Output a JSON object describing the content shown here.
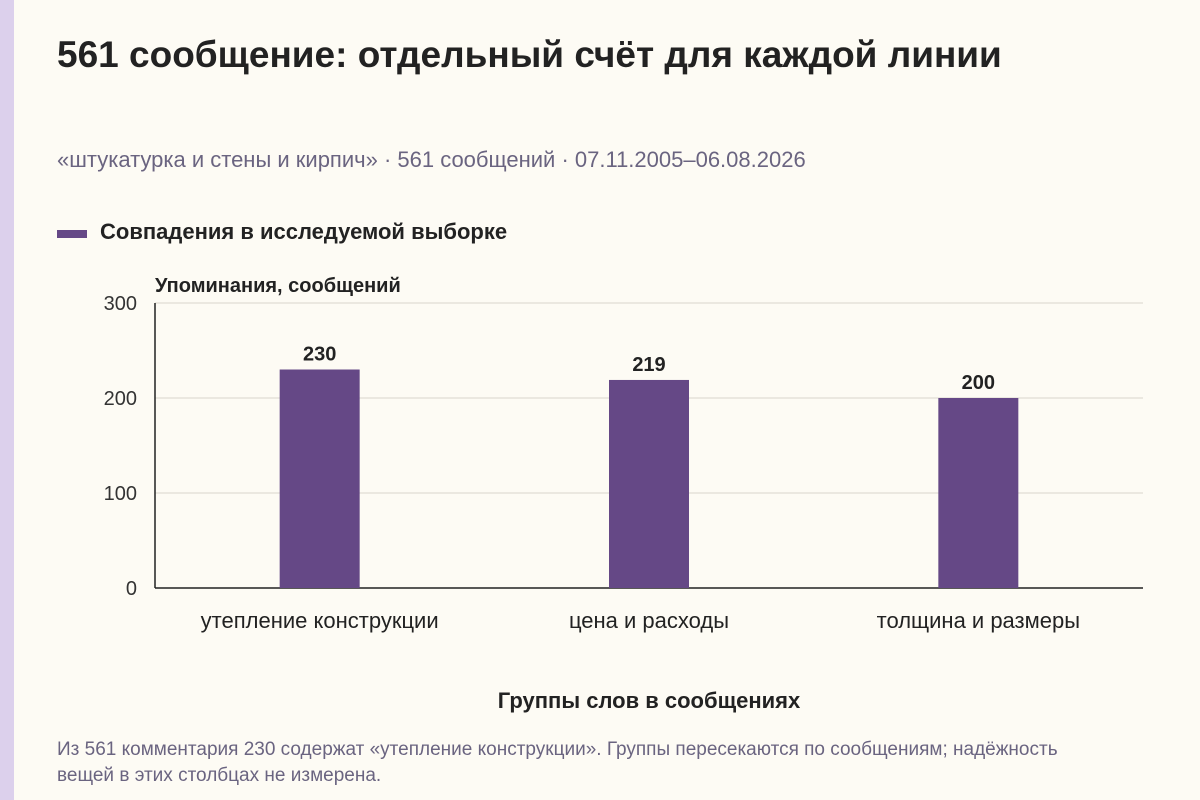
{
  "header": {
    "title": "561 сообщение: отдельный счёт для каждой линии",
    "subtitle": "«штукатурка и стены и кирпич» · 561 сообщений · 07.11.2005–06.08.2026"
  },
  "colors": {
    "accent_strip": "#dcd0ec",
    "bar": "#654886",
    "grid": "#d9d6cc",
    "axis": "#222222",
    "background": "#fdfbf4"
  },
  "footnote": "Из 561 комментария 230 содержат «утепление конструкции». Группы пересекаются по сообщениям; надёжность вещей в этих столбцах не измерена.",
  "chart_data": {
    "type": "bar",
    "categories": [
      "утепление конструкции",
      "цена и расходы",
      "толщина и размеры"
    ],
    "series": [
      {
        "name": "Совпадения в исследуемой выборке",
        "values": [
          230,
          219,
          200
        ]
      }
    ],
    "ylabel": "Упоминания, сообщений",
    "xlabel": "Группы слов в сообщениях",
    "ylim": [
      0,
      300
    ],
    "yticks": [
      0,
      100,
      200,
      300
    ],
    "grid": true,
    "legend_position": "top-left"
  }
}
